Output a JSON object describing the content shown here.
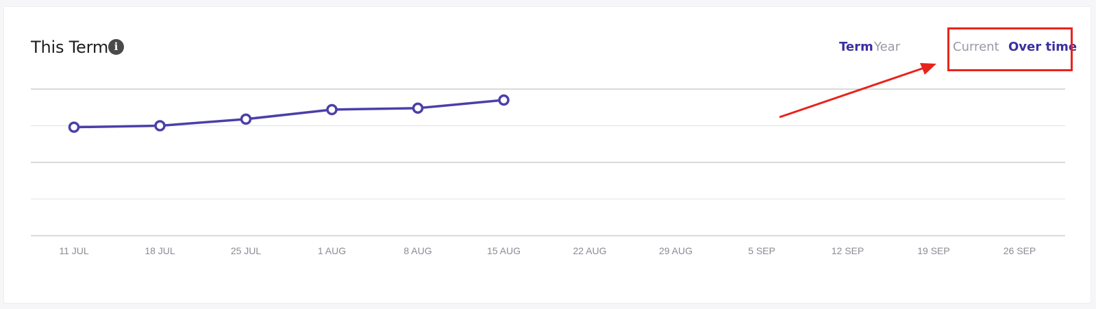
{
  "card": {
    "title": "This Term",
    "info_icon": "info-icon"
  },
  "period_tabs": [
    {
      "label": "Term",
      "active": true
    },
    {
      "label": "Year",
      "active": false
    }
  ],
  "view_tabs": [
    {
      "label": "Current",
      "active": false
    },
    {
      "label": "Over time",
      "active": true
    }
  ],
  "annotation": {
    "color": "#e8231b"
  },
  "colors": {
    "accent": "#3a2fa0",
    "series_line": "#4b3fa8",
    "inactive": "#9a98a6"
  },
  "chart_data": {
    "type": "line",
    "categories": [
      "11 JUL",
      "18 JUL",
      "25 JUL",
      "1 AUG",
      "8 AUG",
      "15 AUG",
      "22 AUG",
      "29 AUG",
      "5 SEP",
      "12 SEP",
      "19 SEP",
      "26 SEP"
    ],
    "series": [
      {
        "values": [
          2.96,
          3.0,
          3.18,
          3.44,
          3.48,
          3.7,
          null,
          null,
          null,
          null,
          null,
          null
        ]
      }
    ],
    "ylim": [
      0,
      4
    ],
    "y_gridlines": [
      0,
      1,
      2,
      3,
      4
    ],
    "grid": true,
    "legend": "none",
    "title": "",
    "xlabel": "",
    "ylabel": ""
  }
}
